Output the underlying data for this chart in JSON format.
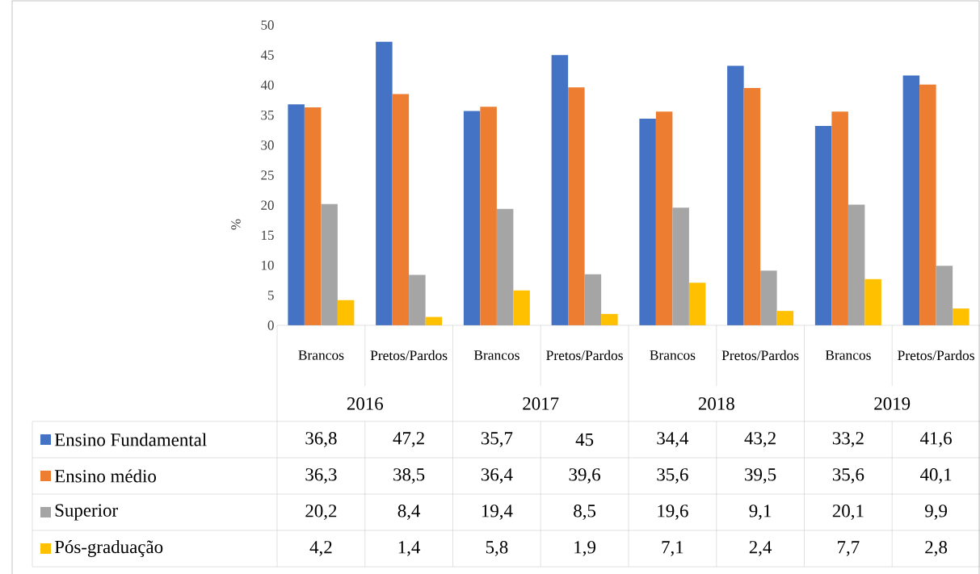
{
  "chart_data": {
    "type": "bar",
    "ylabel": "%",
    "categories": [
      "Brancos",
      "Pretos/Pardos",
      "Brancos",
      "Pretos/Pardos",
      "Brancos",
      "Pretos/Pardos",
      "Brancos",
      "Pretos/Pardos"
    ],
    "annotations": [
      "2016",
      "2017",
      "2018",
      "2019"
    ],
    "series": [
      {
        "name": "Ensino Fundamental",
        "color": "#4472c4",
        "values": [
          36.8,
          47.2,
          35.7,
          45,
          34.4,
          43.2,
          33.2,
          41.6
        ],
        "value_labels": [
          "36,8",
          "47,2",
          "35,7",
          "45",
          "34,4",
          "43,2",
          "33,2",
          "41,6"
        ]
      },
      {
        "name": "Ensino médio",
        "color": "#ed7d31",
        "values": [
          36.3,
          38.5,
          36.4,
          39.6,
          35.6,
          39.5,
          35.6,
          40.1
        ],
        "value_labels": [
          "36,3",
          "38,5",
          "36,4",
          "39,6",
          "35,6",
          "39,5",
          "35,6",
          "40,1"
        ]
      },
      {
        "name": "Superior",
        "color": "#a5a5a5",
        "values": [
          20.2,
          8.4,
          19.4,
          8.5,
          19.6,
          9.1,
          20.1,
          9.9
        ],
        "value_labels": [
          "20,2",
          "8,4",
          "19,4",
          "8,5",
          "19,6",
          "9,1",
          "20,1",
          "9,9"
        ]
      },
      {
        "name": "Pós-graduação",
        "color": "#ffc000",
        "values": [
          4.2,
          1.4,
          5.8,
          1.9,
          7.1,
          2.4,
          7.7,
          2.8
        ],
        "value_labels": [
          "4,2",
          "1,4",
          "5,8",
          "1,9",
          "7,1",
          "2,4",
          "7,7",
          "2,8"
        ]
      }
    ],
    "ylim": [
      0,
      50
    ],
    "yticks": [
      0,
      5,
      10,
      15,
      20,
      25,
      30,
      35,
      40,
      45,
      50
    ],
    "legend": "bottom",
    "grid": false
  }
}
